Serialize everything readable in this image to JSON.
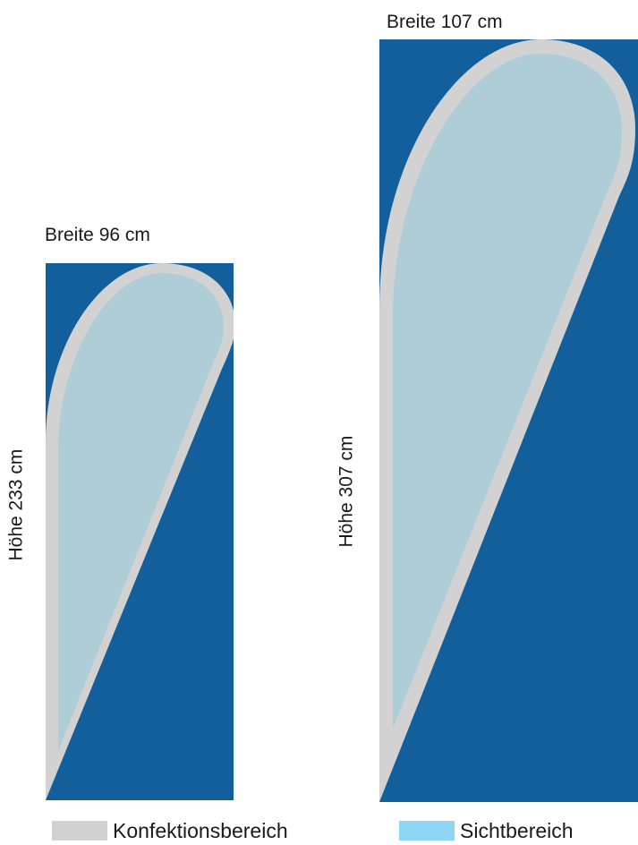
{
  "colors": {
    "background_blue": "#135f9b",
    "konfektion_grey": "#d2d2d2",
    "sicht_light_blue": "#aecdd6",
    "legend_sicht_swatch": "#8fd5f4",
    "legend_konfektion_swatch": "#d2d2d2"
  },
  "small_flag": {
    "width_label": "Breite 96 cm",
    "height_label": "Höhe 233 cm"
  },
  "large_flag": {
    "width_label": "Breite 107 cm",
    "height_label": "Höhe 307 cm"
  },
  "legend": {
    "konfektion_label": "Konfektionsbereich",
    "sicht_label": "Sichtbereich"
  }
}
